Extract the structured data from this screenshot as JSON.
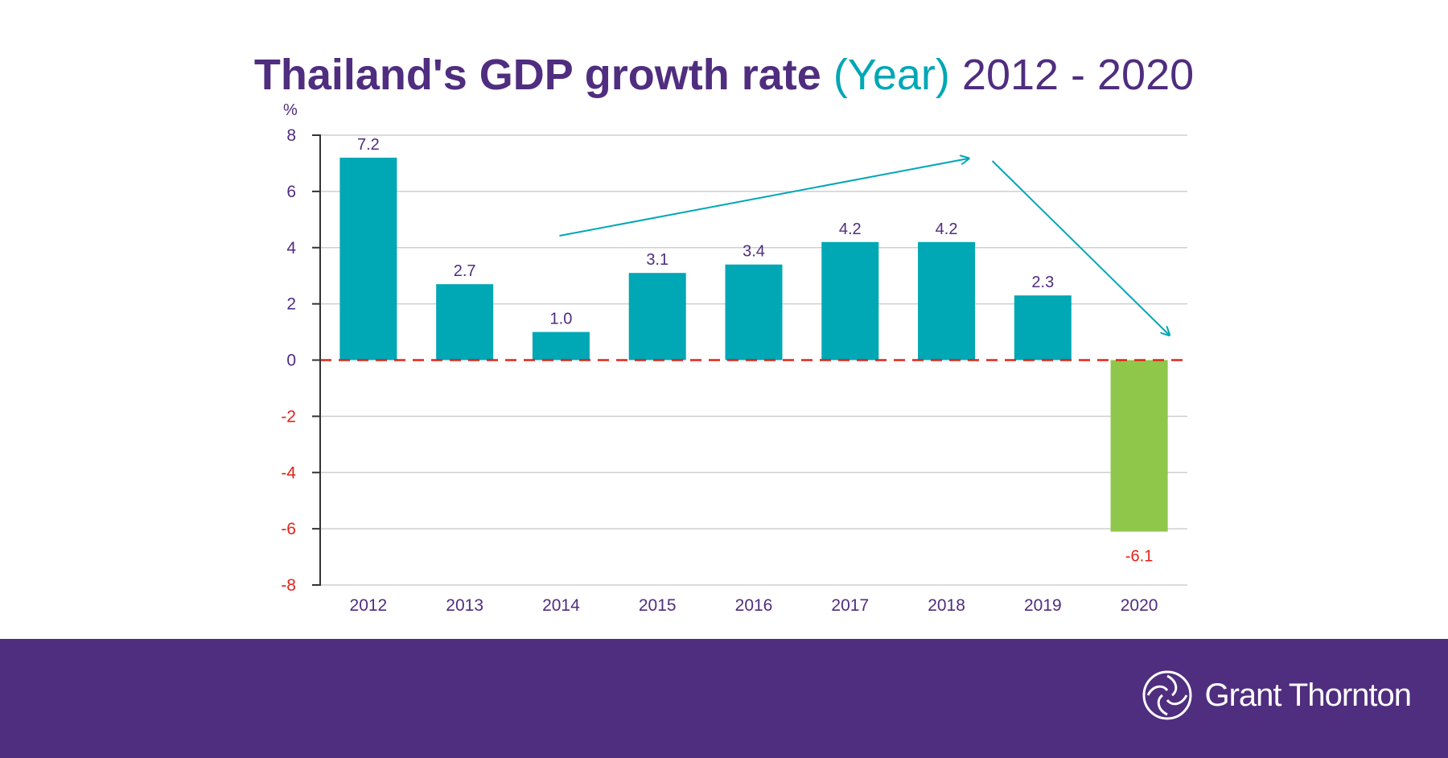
{
  "title": {
    "main": "Thailand's GDP growth rate",
    "year": "(Year)",
    "range": "2012 - 2020"
  },
  "chart_data": {
    "type": "bar",
    "title": "Thailand's GDP growth rate (Year) 2012 - 2020",
    "ylabel": "%",
    "xlabel": "",
    "ylim": [
      -8,
      8
    ],
    "yticks": [
      8,
      6,
      4,
      2,
      0,
      -2,
      -4,
      -6,
      -8
    ],
    "grid": true,
    "categories": [
      "2012",
      "2013",
      "2014",
      "2015",
      "2016",
      "2017",
      "2018",
      "2019",
      "2020"
    ],
    "values": [
      7.2,
      2.7,
      1.0,
      3.1,
      3.4,
      4.2,
      4.2,
      2.3,
      -6.1
    ],
    "value_labels": [
      "7.2",
      "2.7",
      "1.0",
      "3.1",
      "3.4",
      "4.2",
      "4.2",
      "2.3",
      "-6.1"
    ],
    "annotations": [
      "upward trend arrow from 2014 to 2018",
      "downward trend arrow from 2018 to 2020",
      "dashed zero line"
    ]
  },
  "colors": {
    "purple": "#4f2d7f",
    "teal": "#00a7b5",
    "green": "#8fc74a",
    "red": "#e2231a",
    "grid": "#cfcfcf"
  },
  "footer": {
    "brand": "Grant Thornton",
    "logo_icon": "grant-thornton-logo-icon"
  }
}
